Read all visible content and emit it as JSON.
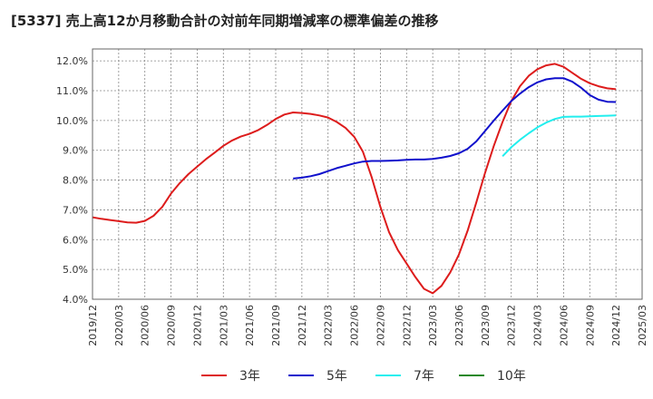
{
  "title": "[5337]  売上高12か月移動合計の対前年同期増減率の標準偏差の推移",
  "chart_data": {
    "type": "line",
    "title": "[5337]  売上高12か月移動合計の対前年同期増減率の標準偏差の推移",
    "xlabel": "",
    "ylabel": "",
    "ylim": [
      4.0,
      12.4
    ],
    "yticks": [
      4.0,
      5.0,
      6.0,
      7.0,
      8.0,
      9.0,
      10.0,
      11.0,
      12.0
    ],
    "ytick_labels": [
      "4.0%",
      "5.0%",
      "6.0%",
      "7.0%",
      "8.0%",
      "9.0%",
      "10.0%",
      "11.0%",
      "12.0%"
    ],
    "xticks": [
      "2019/12",
      "2020/03",
      "2020/06",
      "2020/09",
      "2020/12",
      "2021/03",
      "2021/06",
      "2021/09",
      "2021/12",
      "2022/03",
      "2022/06",
      "2022/09",
      "2022/12",
      "2023/03",
      "2023/06",
      "2023/09",
      "2023/12",
      "2024/03",
      "2024/06",
      "2024/09",
      "2024/12",
      "2025/03"
    ],
    "grid": true,
    "legend_position": "bottom",
    "series": [
      {
        "name": "3年",
        "color": "#dd1c1c",
        "x": [
          "2019/12",
          "2020/01",
          "2020/02",
          "2020/03",
          "2020/04",
          "2020/05",
          "2020/06",
          "2020/07",
          "2020/08",
          "2020/09",
          "2020/10",
          "2020/11",
          "2020/12",
          "2021/01",
          "2021/02",
          "2021/03",
          "2021/04",
          "2021/05",
          "2021/06",
          "2021/07",
          "2021/08",
          "2021/09",
          "2021/10",
          "2021/11",
          "2021/12",
          "2022/01",
          "2022/02",
          "2022/03",
          "2022/04",
          "2022/05",
          "2022/06",
          "2022/07",
          "2022/08",
          "2022/09",
          "2022/10",
          "2022/11",
          "2022/12",
          "2023/01",
          "2023/02",
          "2023/03",
          "2023/04",
          "2023/05",
          "2023/06",
          "2023/07",
          "2023/08",
          "2023/09",
          "2023/10",
          "2023/11",
          "2023/12",
          "2024/01",
          "2024/02",
          "2024/03",
          "2024/04",
          "2024/05",
          "2024/06",
          "2024/07",
          "2024/08",
          "2024/09",
          "2024/10",
          "2024/11",
          "2024/12"
        ],
        "values": [
          6.75,
          6.7,
          6.66,
          6.62,
          6.58,
          6.57,
          6.63,
          6.8,
          7.1,
          7.55,
          7.9,
          8.2,
          8.45,
          8.7,
          8.92,
          9.15,
          9.33,
          9.46,
          9.55,
          9.68,
          9.85,
          10.05,
          10.2,
          10.27,
          10.25,
          10.22,
          10.17,
          10.1,
          9.95,
          9.75,
          9.45,
          8.95,
          8.1,
          7.1,
          6.25,
          5.65,
          5.2,
          4.75,
          4.35,
          4.2,
          4.45,
          4.9,
          5.5,
          6.3,
          7.25,
          8.25,
          9.15,
          9.95,
          10.65,
          11.15,
          11.5,
          11.72,
          11.85,
          11.9,
          11.8,
          11.6,
          11.4,
          11.25,
          11.15,
          11.08,
          11.05
        ]
      },
      {
        "name": "5年",
        "color": "#1010cc",
        "x": [
          "2021/11",
          "2021/12",
          "2022/01",
          "2022/02",
          "2022/03",
          "2022/04",
          "2022/05",
          "2022/06",
          "2022/07",
          "2022/08",
          "2022/09",
          "2022/10",
          "2022/11",
          "2022/12",
          "2023/01",
          "2023/02",
          "2023/03",
          "2023/04",
          "2023/05",
          "2023/06",
          "2023/07",
          "2023/08",
          "2023/09",
          "2023/10",
          "2023/11",
          "2023/12",
          "2024/01",
          "2024/02",
          "2024/03",
          "2024/04",
          "2024/05",
          "2024/06",
          "2024/07",
          "2024/08",
          "2024/09",
          "2024/10",
          "2024/11",
          "2024/12"
        ],
        "values": [
          8.05,
          8.08,
          8.13,
          8.2,
          8.3,
          8.4,
          8.48,
          8.56,
          8.62,
          8.64,
          8.64,
          8.65,
          8.66,
          8.68,
          8.69,
          8.69,
          8.71,
          8.75,
          8.81,
          8.9,
          9.05,
          9.3,
          9.65,
          10.0,
          10.33,
          10.65,
          10.9,
          11.12,
          11.28,
          11.38,
          11.42,
          11.42,
          11.3,
          11.1,
          10.85,
          10.7,
          10.63,
          10.62
        ]
      },
      {
        "name": "7年",
        "color": "#22eeee",
        "x": [
          "2023/11",
          "2023/12",
          "2024/01",
          "2024/02",
          "2024/03",
          "2024/04",
          "2024/05",
          "2024/06",
          "2024/07",
          "2024/08",
          "2024/09",
          "2024/10",
          "2024/11",
          "2024/12"
        ],
        "values": [
          8.8,
          9.1,
          9.35,
          9.57,
          9.77,
          9.93,
          10.05,
          10.12,
          10.13,
          10.13,
          10.14,
          10.15,
          10.16,
          10.17
        ]
      },
      {
        "name": "10年",
        "color": "#228822",
        "x": [],
        "values": []
      }
    ]
  }
}
